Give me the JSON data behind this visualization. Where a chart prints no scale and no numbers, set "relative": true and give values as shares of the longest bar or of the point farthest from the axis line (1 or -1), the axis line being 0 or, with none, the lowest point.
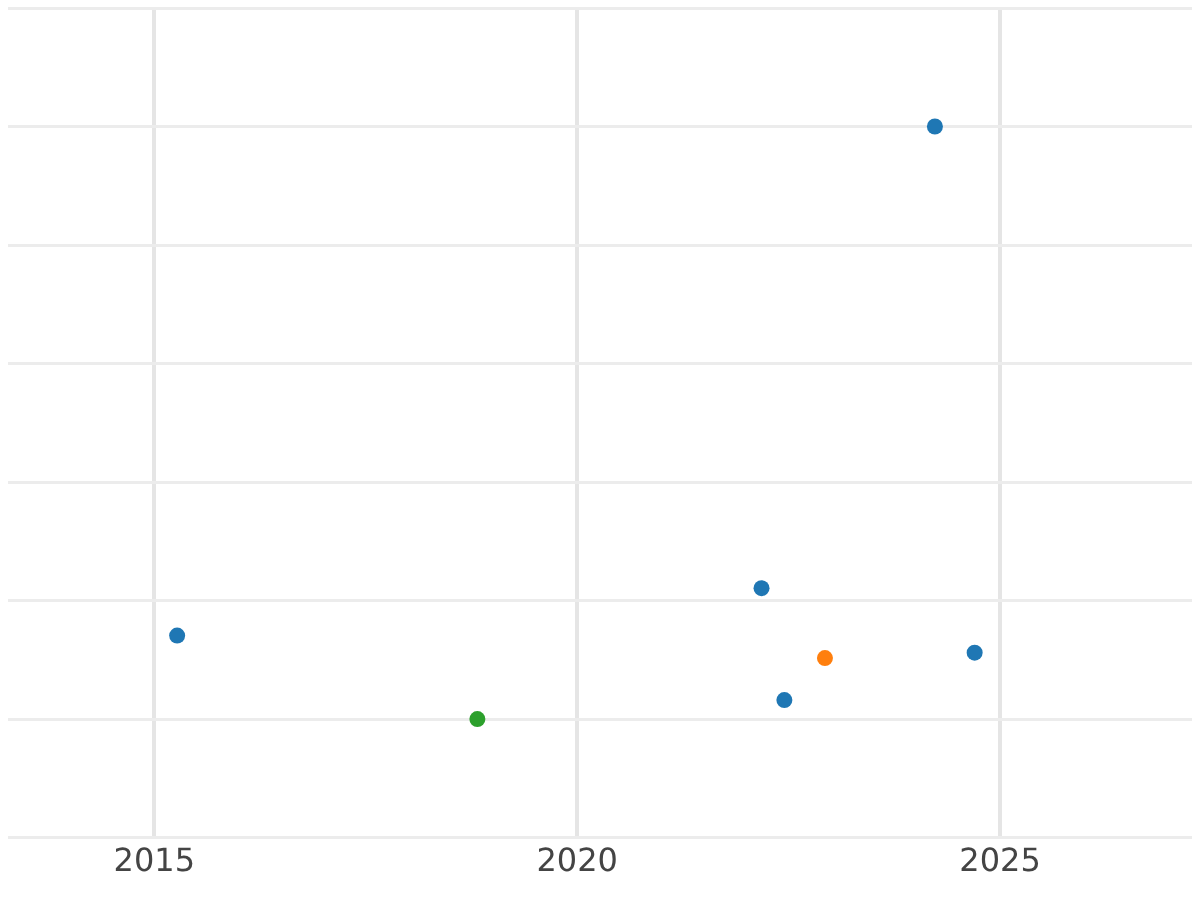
{
  "chart_data": {
    "type": "scatter",
    "relative": true,
    "grid": true,
    "tick_labels": "x",
    "marker": "circle",
    "legend": false,
    "xlim": [
      2013.27,
      2027.27
    ],
    "xticks": [
      2015,
      2020,
      2025
    ],
    "series": [
      {
        "color": "#1f77b4",
        "x": [
          2015.27,
          2022.18,
          2022.45,
          2024.23,
          2024.7
        ],
        "values": [
          0.141,
          0.221,
          0.032,
          1,
          0.112
        ]
      },
      {
        "color": "#ff7f0e",
        "x": [
          2022.93
        ],
        "values": [
          0.103
        ]
      },
      {
        "color": "#2ca02c",
        "x": [
          2018.82
        ],
        "values": [
          0
        ]
      }
    ]
  }
}
